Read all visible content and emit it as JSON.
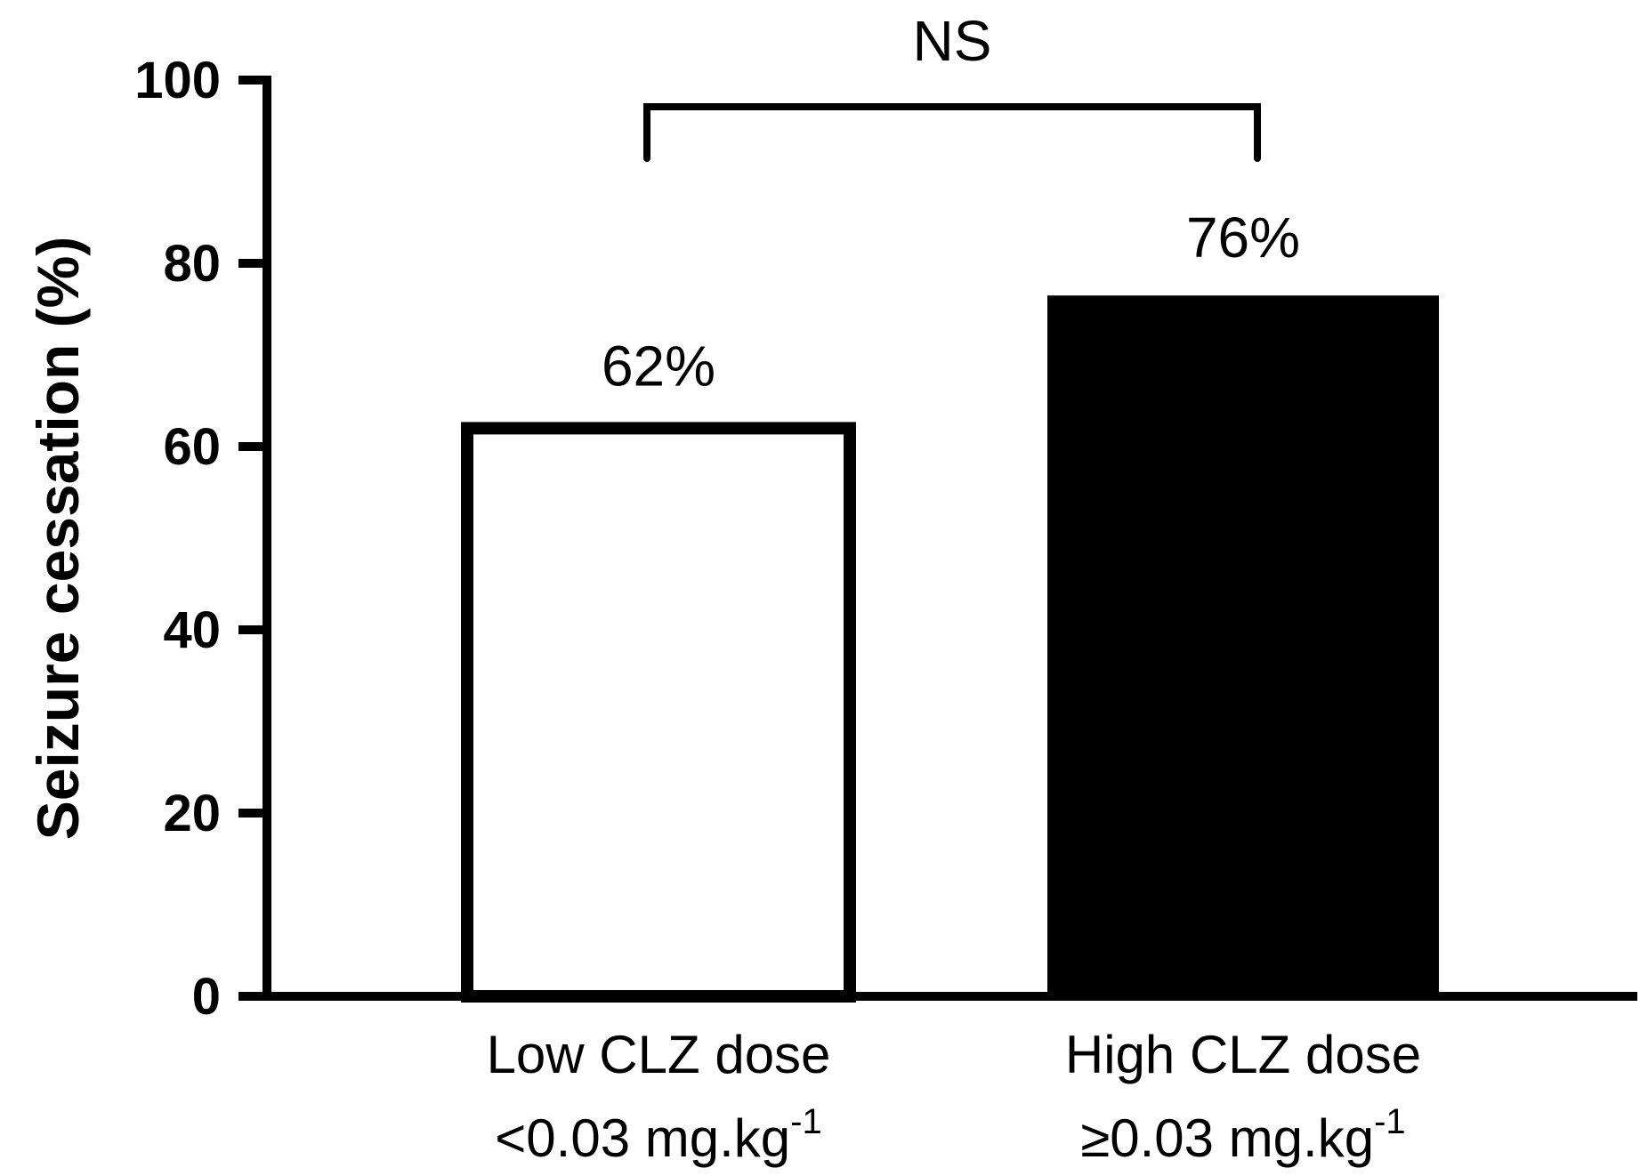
{
  "chart_data": {
    "type": "bar",
    "ylabel": "Seizure cessation (%)",
    "xlabel": "",
    "ylim": [
      0,
      100
    ],
    "yticks": [
      "0",
      "20",
      "40",
      "60",
      "80",
      "100"
    ],
    "grid": false,
    "legend": "none",
    "categories": [
      {
        "line1": "Low CLZ dose",
        "line2_prefix": "<0.03 mg.kg",
        "line2_sup": "-1"
      },
      {
        "line1": "High CLZ dose",
        "line2_prefix": "≥0.03 mg.kg",
        "line2_sup": "-1"
      }
    ],
    "values": [
      62,
      76
    ],
    "data_labels": [
      "62%",
      "76%"
    ],
    "bar_fills": [
      "#ffffff",
      "#000000"
    ],
    "significance": {
      "label": "NS",
      "between": [
        0,
        1
      ]
    }
  }
}
